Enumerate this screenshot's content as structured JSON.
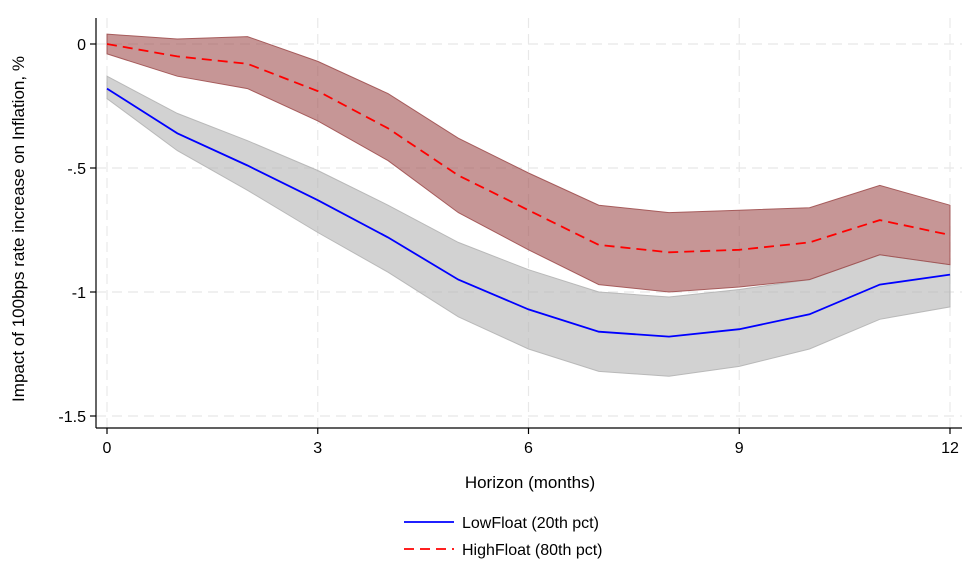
{
  "chart_data": {
    "type": "line",
    "title": "",
    "xlabel": "Horizon (months)",
    "ylabel": "Impact of 100bps rate increase on Inflation, %",
    "xlim": [
      0,
      12
    ],
    "ylim": [
      -1.5,
      0
    ],
    "xticks": [
      0,
      3,
      6,
      9,
      12
    ],
    "xtick_labels": [
      "0",
      "3",
      "6",
      "9",
      "12"
    ],
    "yticks": [
      0,
      -0.5,
      -1,
      -1.5
    ],
    "ytick_labels": [
      "0",
      "-.5",
      "-1",
      "-1.5"
    ],
    "grid": true,
    "legend_position": "bottom",
    "x": [
      0,
      1,
      2,
      3,
      4,
      5,
      6,
      7,
      8,
      9,
      10,
      11,
      12
    ],
    "series": [
      {
        "name": "LowFloat (20th pct)",
        "color": "#0000ff",
        "line_style": "solid",
        "band_color": "#b4b4b4",
        "values": [
          -0.18,
          -0.36,
          -0.49,
          -0.63,
          -0.78,
          -0.95,
          -1.07,
          -1.16,
          -1.18,
          -1.15,
          -1.09,
          -0.97,
          -0.93
        ],
        "lower": [
          -0.22,
          -0.43,
          -0.59,
          -0.76,
          -0.92,
          -1.1,
          -1.23,
          -1.32,
          -1.34,
          -1.3,
          -1.23,
          -1.11,
          -1.06
        ],
        "upper": [
          -0.13,
          -0.28,
          -0.39,
          -0.51,
          -0.65,
          -0.8,
          -0.91,
          -1.0,
          -1.02,
          -0.99,
          -0.95,
          -0.85,
          -0.89
        ]
      },
      {
        "name": "HighFloat (80th pct)",
        "color": "#ff0000",
        "line_style": "dashed",
        "band_color": "#a05050",
        "values": [
          0.0,
          -0.05,
          -0.08,
          -0.19,
          -0.34,
          -0.53,
          -0.67,
          -0.81,
          -0.84,
          -0.83,
          -0.8,
          -0.71,
          -0.77
        ],
        "lower": [
          -0.04,
          -0.13,
          -0.18,
          -0.31,
          -0.47,
          -0.68,
          -0.83,
          -0.97,
          -1.0,
          -0.98,
          -0.95,
          -0.85,
          -0.89
        ],
        "upper": [
          0.04,
          0.02,
          0.03,
          -0.07,
          -0.2,
          -0.38,
          -0.52,
          -0.65,
          -0.68,
          -0.67,
          -0.66,
          -0.57,
          -0.65
        ]
      }
    ]
  }
}
